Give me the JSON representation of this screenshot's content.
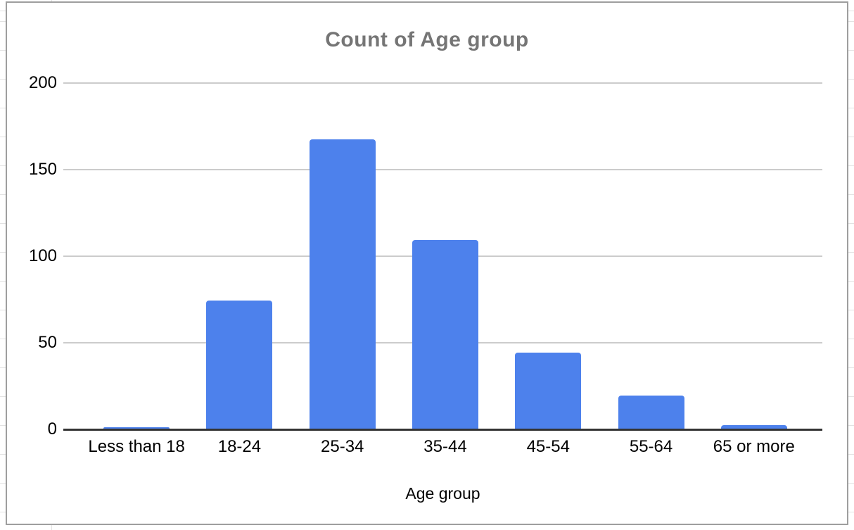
{
  "chart_data": {
    "type": "bar",
    "title": "Count of Age group",
    "categories": [
      "Less than 18",
      "18-24",
      "25-34",
      "35-44",
      "45-54",
      "55-64",
      "65 or more"
    ],
    "values": [
      1,
      74,
      167,
      109,
      44,
      19,
      2
    ],
    "xlabel": "Age group",
    "ylabel": "",
    "ylim": [
      0,
      200
    ],
    "yticks": [
      0,
      50,
      100,
      150,
      200
    ],
    "legend": "none",
    "grid": true,
    "colors": {
      "bar": "#4d81ec",
      "title": "#757575",
      "axis_line": "#333333",
      "gridline": "#cccccc",
      "labels": "#000000",
      "chart_border": "#9e9e9e",
      "sheet_gridline": "#e2e2e2",
      "background": "#ffffff"
    }
  }
}
